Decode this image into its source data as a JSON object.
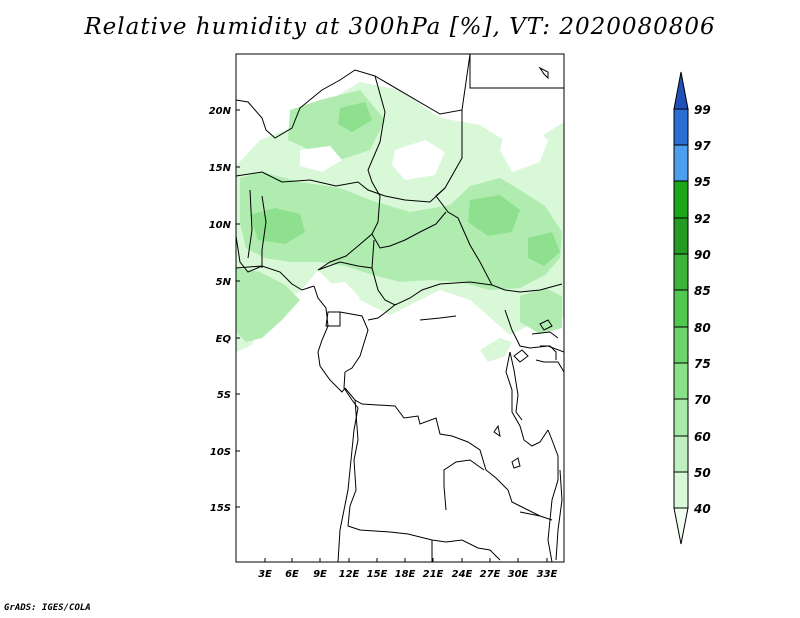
{
  "title": "Relative humidity at 300hPa [%], VT: 2020080806",
  "credit": "GrADS: IGES/COLA",
  "map": {
    "lat_labels": [
      "20N",
      "15N",
      "10N",
      "5N",
      "EQ",
      "5S",
      "10S",
      "15S"
    ],
    "lon_labels": [
      "3E",
      "6E",
      "9E",
      "12E",
      "15E",
      "18E",
      "21E",
      "24E",
      "27E",
      "30E",
      "33E"
    ]
  },
  "colorbar": {
    "levels": [
      "40",
      "50",
      "60",
      "70",
      "75",
      "80",
      "85",
      "90",
      "92",
      "95",
      "97",
      "99"
    ],
    "colors": [
      "#f0fdf0",
      "#d8f8d8",
      "#c0f0c0",
      "#a8eaa8",
      "#88e088",
      "#6cd46c",
      "#50c850",
      "#3cb43c",
      "#249c24",
      "#1aa81a",
      "#4c9fec",
      "#2a6ed6",
      "#2050b8"
    ]
  },
  "humidity_field": {
    "colors": {
      "light": "#d8f8d8",
      "medium": "#b0ecb0",
      "dark": "#8ee08e"
    }
  }
}
